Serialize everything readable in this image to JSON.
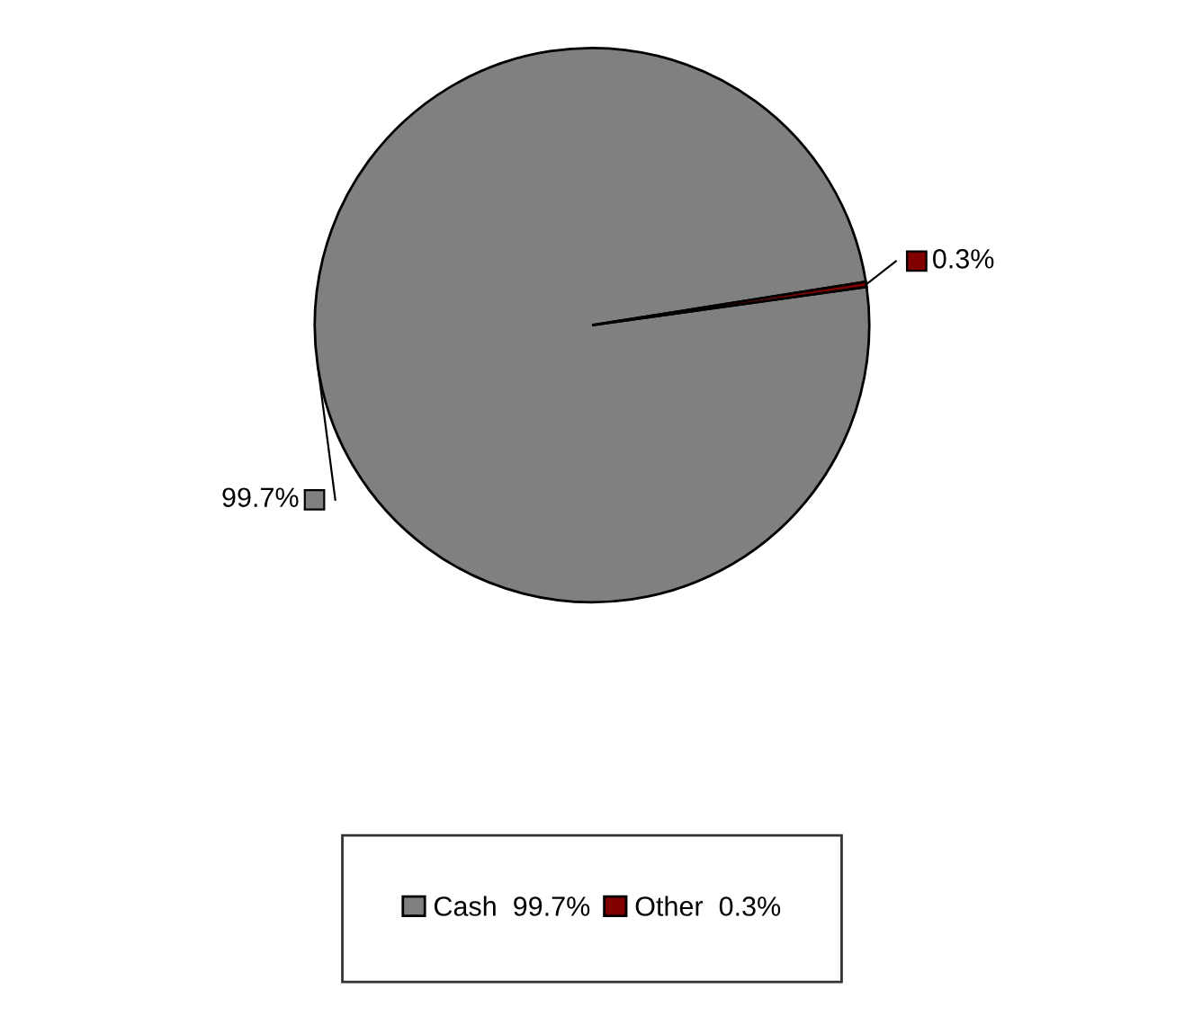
{
  "chart_data": {
    "type": "pie",
    "categories": [
      "Cash",
      "Other"
    ],
    "values": [
      99.7,
      0.3
    ],
    "colors": [
      "#808080",
      "#800000"
    ],
    "value_labels": [
      "99.7%",
      "0.3%"
    ],
    "legend": "bottom"
  }
}
